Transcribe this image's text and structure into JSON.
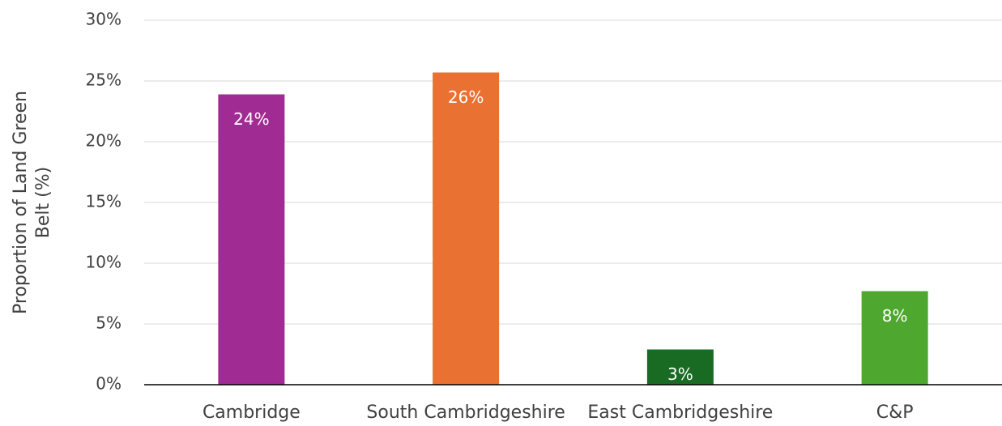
{
  "chart_data": {
    "type": "bar",
    "y_axis_label": "Proportion of Land Green Belt (%)",
    "categories": [
      "Cambridge",
      "South Cambridgeshire",
      "East Cambridgeshire",
      "C&P"
    ],
    "values": [
      23.9,
      25.7,
      2.9,
      7.7
    ],
    "value_labels": [
      "24%",
      "26%",
      "3%",
      "8%"
    ],
    "colors": [
      "#a02b93",
      "#e97132",
      "#196b24",
      "#4ea72e"
    ],
    "ylim": [
      0,
      30
    ],
    "yticks": [
      {
        "value": 0,
        "label": "0%"
      },
      {
        "value": 5,
        "label": "5%"
      },
      {
        "value": 10,
        "label": "10%"
      },
      {
        "value": 15,
        "label": "15%"
      },
      {
        "value": 20,
        "label": "20%"
      },
      {
        "value": 25,
        "label": "25%"
      },
      {
        "value": 30,
        "label": "30%"
      }
    ],
    "grid": true
  }
}
